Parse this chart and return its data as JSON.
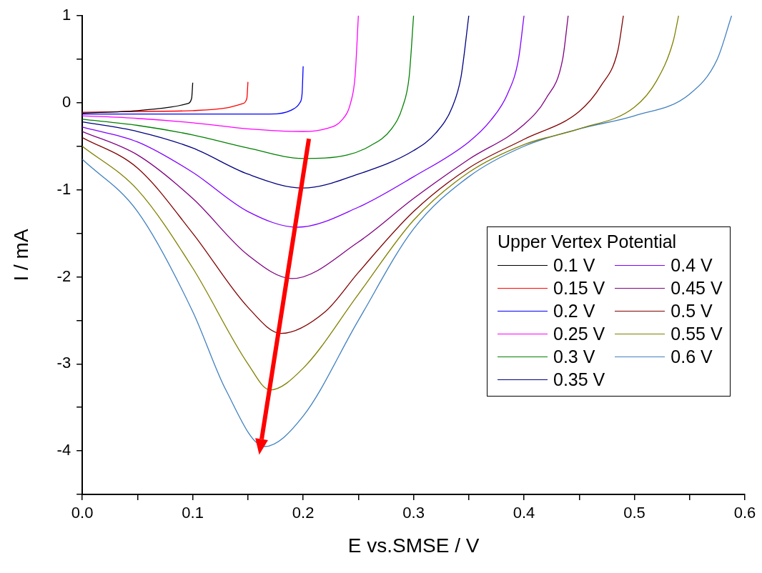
{
  "chart_data": {
    "type": "line",
    "xlabel": "E vs.SMSE / V",
    "ylabel": "I / mA",
    "legend_title": "Upper Vertex Potential",
    "legend": "right",
    "marker": "none",
    "line_style": "solid",
    "grid": false,
    "xlim": [
      0,
      0.6
    ],
    "xticks": [
      {
        "value": 0,
        "label": "0.0"
      },
      {
        "value": 0.05,
        "label": null
      },
      0.1,
      {
        "value": 0.15,
        "label": null
      },
      0.2,
      {
        "value": 0.25,
        "label": null
      },
      0.3,
      {
        "value": 0.35,
        "label": null
      },
      0.4,
      {
        "value": 0.45,
        "label": null
      },
      0.5,
      {
        "value": 0.55,
        "label": null
      },
      0.6
    ],
    "ylim": [
      -4.5,
      1
    ],
    "yticks": [
      {
        "value": -4.5,
        "label": null
      },
      -4,
      {
        "value": -3.5,
        "label": null
      },
      -3,
      {
        "value": -2.5,
        "label": null
      },
      -2,
      {
        "value": -1.5,
        "label": null
      },
      -1,
      {
        "value": -0.5,
        "label": null
      },
      0,
      {
        "value": 0.5,
        "label": null
      },
      1
    ],
    "series": [
      {
        "name": "0.1 V",
        "color": "#000000",
        "x": [
          0,
          0.05,
          0.08,
          0.095,
          0.099,
          0.1
        ],
        "values": [
          -0.12,
          -0.09,
          -0.05,
          -0.01,
          0.05,
          0.23
        ]
      },
      {
        "name": "0.15 V",
        "color": "#ff0000",
        "x": [
          0,
          0.05,
          0.1,
          0.13,
          0.145,
          0.149,
          0.15
        ],
        "values": [
          -0.11,
          -0.1,
          -0.09,
          -0.06,
          -0.01,
          0.05,
          0.24
        ]
      },
      {
        "name": "0.2 V",
        "color": "#0000ff",
        "x": [
          0,
          0.1,
          0.17,
          0.19,
          0.197,
          0.199,
          0.2
        ],
        "values": [
          -0.13,
          -0.13,
          -0.13,
          -0.08,
          0,
          0.1,
          0.42
        ]
      },
      {
        "name": "0.25 V",
        "color": "#ff00ff",
        "x": [
          0,
          0.05,
          0.1,
          0.15,
          0.2,
          0.22,
          0.235,
          0.243,
          0.247,
          0.25
        ],
        "values": [
          -0.15,
          -0.18,
          -0.23,
          -0.3,
          -0.33,
          -0.3,
          -0.2,
          0,
          0.3,
          1
        ]
      },
      {
        "name": "0.3 V",
        "color": "#008000",
        "x": [
          0,
          0.05,
          0.1,
          0.15,
          0.2,
          0.24,
          0.26,
          0.28,
          0.29,
          0.296,
          0.3
        ],
        "values": [
          -0.19,
          -0.26,
          -0.37,
          -0.52,
          -0.64,
          -0.6,
          -0.5,
          -0.3,
          -0.05,
          0.3,
          1
        ]
      },
      {
        "name": "0.35 V",
        "color": "#000080",
        "x": [
          0,
          0.05,
          0.1,
          0.15,
          0.2,
          0.25,
          0.3,
          0.32,
          0.335,
          0.343,
          0.35
        ],
        "values": [
          -0.22,
          -0.33,
          -0.52,
          -0.82,
          -0.98,
          -0.82,
          -0.55,
          -0.35,
          -0.05,
          0.3,
          1
        ]
      },
      {
        "name": "0.4 V",
        "color": "#8000ff",
        "x": [
          0,
          0.05,
          0.1,
          0.15,
          0.195,
          0.25,
          0.3,
          0.35,
          0.37,
          0.385,
          0.395,
          0.4
        ],
        "values": [
          -0.28,
          -0.45,
          -0.8,
          -1.25,
          -1.43,
          -1.2,
          -0.85,
          -0.45,
          -0.2,
          0.1,
          0.5,
          1
        ]
      },
      {
        "name": "0.45 V",
        "color": "#800080",
        "x": [
          0,
          0.05,
          0.1,
          0.15,
          0.19,
          0.25,
          0.3,
          0.35,
          0.4,
          0.42,
          0.435,
          0.44
        ],
        "values": [
          -0.33,
          -0.6,
          -1.1,
          -1.75,
          -2.02,
          -1.6,
          -1.1,
          -0.65,
          -0.25,
          0.05,
          0.5,
          1
        ]
      },
      {
        "name": "0.5 V",
        "color": "#800000",
        "x": [
          0,
          0.05,
          0.1,
          0.15,
          0.18,
          0.22,
          0.25,
          0.3,
          0.35,
          0.4,
          0.45,
          0.47,
          0.485,
          0.49
        ],
        "values": [
          -0.4,
          -0.75,
          -1.5,
          -2.35,
          -2.65,
          -2.4,
          -1.95,
          -1.25,
          -0.75,
          -0.42,
          -0.1,
          0.2,
          0.6,
          1
        ]
      },
      {
        "name": "0.55 V",
        "color": "#808000",
        "x": [
          0,
          0.05,
          0.1,
          0.15,
          0.17,
          0.2,
          0.25,
          0.3,
          0.35,
          0.4,
          0.45,
          0.5,
          0.52,
          0.535,
          0.54
        ],
        "values": [
          -0.5,
          -1,
          -1.9,
          -3,
          -3.3,
          -3.05,
          -2.2,
          -1.35,
          -0.8,
          -0.48,
          -0.3,
          -0.05,
          0.25,
          0.7,
          1
        ]
      },
      {
        "name": "0.6 V",
        "color": "#4080c0",
        "x": [
          0,
          0.05,
          0.1,
          0.13,
          0.165,
          0.2,
          0.25,
          0.3,
          0.35,
          0.4,
          0.45,
          0.5,
          0.55,
          0.575,
          0.588
        ],
        "values": [
          -0.65,
          -1.25,
          -2.4,
          -3.3,
          -3.95,
          -3.6,
          -2.5,
          -1.45,
          -0.85,
          -0.5,
          -0.3,
          -0.15,
          0.1,
          0.5,
          1
        ]
      }
    ]
  }
}
